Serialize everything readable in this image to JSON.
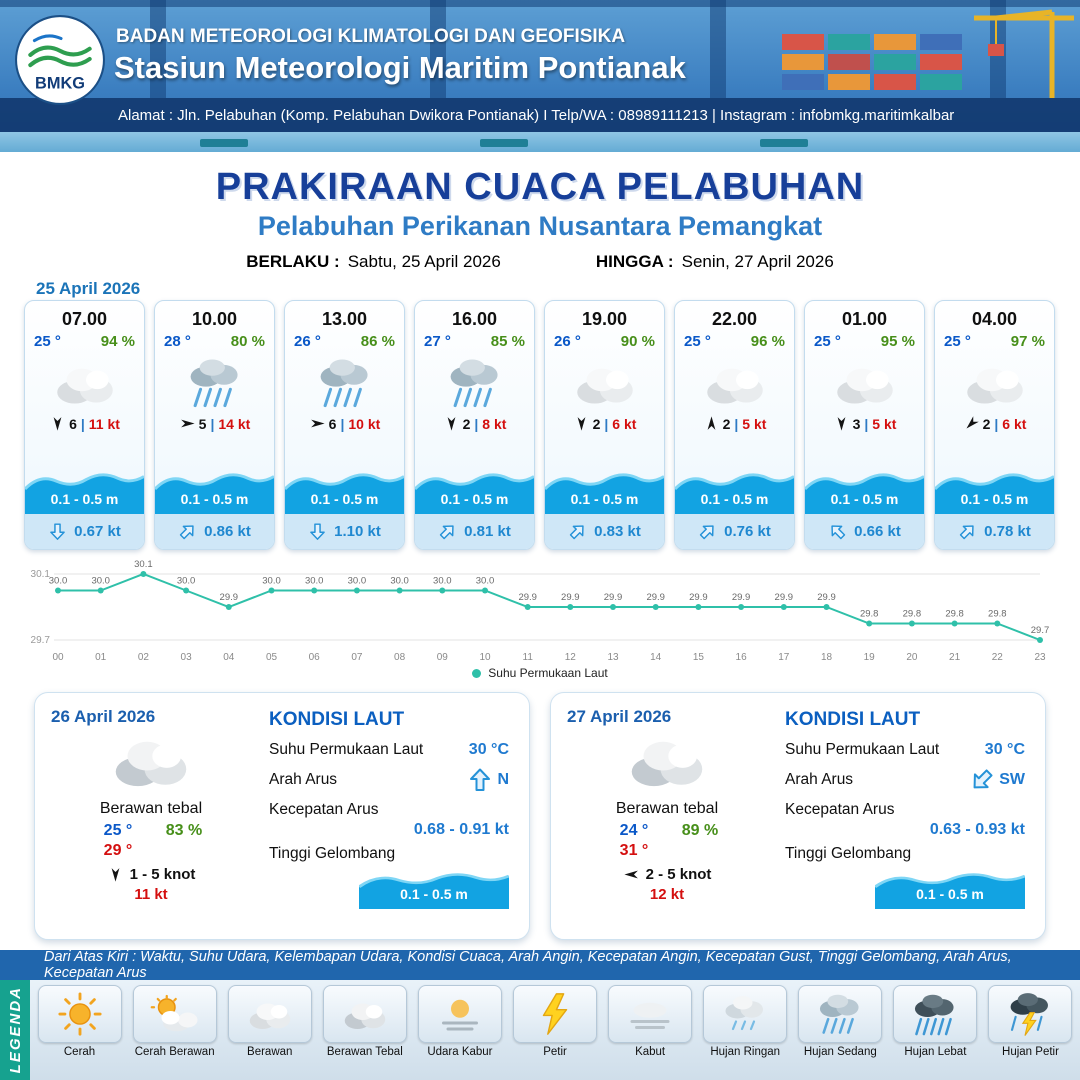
{
  "header": {
    "logo_text": "BMKG",
    "org": "BADAN METEOROLOGI KLIMATOLOGI DAN GEOFISIKA",
    "station": "Stasiun Meteorologi Maritim Pontianak",
    "address": "Alamat : Jln. Pelabuhan (Komp. Pelabuhan Dwikora Pontianak) I Telp/WA : 08989111213 | Instagram : infobmkg.maritimkalbar"
  },
  "title": {
    "main": "PRAKIRAAN CUACA PELABUHAN",
    "sub": "Pelabuhan Perikanan Nusantara Pemangkat",
    "valid_label": "BERLAKU :",
    "valid_value": "Sabtu, 25 April 2026",
    "until_label": "HINGGA :",
    "until_value": "Senin, 27 April 2026"
  },
  "hourly": {
    "date": "25 April 2026",
    "sep": "|",
    "cards": [
      {
        "time": "07.00",
        "temp": "25 °",
        "rh": "94 %",
        "icon": "berawan",
        "wind_deg": 180,
        "wind": "6",
        "gust": "11 kt",
        "wave": "0.1 - 0.5 m",
        "cur_deg": 180,
        "cur": "0.67 kt"
      },
      {
        "time": "10.00",
        "temp": "28 °",
        "rh": "80 %",
        "icon": "hujan-sedang",
        "wind_deg": 90,
        "wind": "5",
        "gust": "14 kt",
        "wave": "0.1 - 0.5 m",
        "cur_deg": 45,
        "cur": "0.86 kt"
      },
      {
        "time": "13.00",
        "temp": "26 °",
        "rh": "86 %",
        "icon": "hujan-sedang",
        "wind_deg": 90,
        "wind": "6",
        "gust": "10 kt",
        "wave": "0.1 - 0.5 m",
        "cur_deg": 180,
        "cur": "1.10 kt"
      },
      {
        "time": "16.00",
        "temp": "27 °",
        "rh": "85 %",
        "icon": "hujan-sedang",
        "wind_deg": 180,
        "wind": "2",
        "gust": "8 kt",
        "wave": "0.1 - 0.5 m",
        "cur_deg": 45,
        "cur": "0.81 kt"
      },
      {
        "time": "19.00",
        "temp": "26 °",
        "rh": "90 %",
        "icon": "berawan",
        "wind_deg": 180,
        "wind": "2",
        "gust": "6 kt",
        "wave": "0.1 - 0.5 m",
        "cur_deg": 45,
        "cur": "0.83 kt"
      },
      {
        "time": "22.00",
        "temp": "25 °",
        "rh": "96 %",
        "icon": "berawan",
        "wind_deg": 0,
        "wind": "2",
        "gust": "5 kt",
        "wave": "0.1 - 0.5 m",
        "cur_deg": 45,
        "cur": "0.76 kt"
      },
      {
        "time": "01.00",
        "temp": "25 °",
        "rh": "95 %",
        "icon": "berawan",
        "wind_deg": 180,
        "wind": "3",
        "gust": "5 kt",
        "wave": "0.1 - 0.5 m",
        "cur_deg": 315,
        "cur": "0.66 kt"
      },
      {
        "time": "04.00",
        "temp": "25 °",
        "rh": "97 %",
        "icon": "berawan",
        "wind_deg": 225,
        "wind": "2",
        "gust": "6 kt",
        "wave": "0.1 - 0.5 m",
        "cur_deg": 45,
        "cur": "0.78 kt"
      }
    ]
  },
  "chart_data": {
    "type": "line",
    "series_label": "Suhu Permukaan Laut",
    "x": [
      "00",
      "01",
      "02",
      "03",
      "04",
      "05",
      "06",
      "07",
      "08",
      "09",
      "10",
      "11",
      "12",
      "13",
      "14",
      "15",
      "16",
      "17",
      "18",
      "19",
      "20",
      "21",
      "22",
      "23"
    ],
    "values": [
      30.0,
      30.0,
      30.1,
      30.0,
      29.9,
      30.0,
      30.0,
      30.0,
      30.0,
      30.0,
      30.0,
      29.9,
      29.9,
      29.9,
      29.9,
      29.9,
      29.9,
      29.9,
      29.9,
      29.8,
      29.8,
      29.8,
      29.8,
      29.7
    ],
    "ylim": [
      29.7,
      30.1
    ],
    "line_color": "#2fc0a9",
    "grid": true,
    "legend_position": "bottom"
  },
  "daily": [
    {
      "date": "26 April 2026",
      "icon": "berawan-tebal",
      "condition": "Berawan tebal",
      "tmin": "25 °",
      "rh": "83 %",
      "tmax": "29 °",
      "wind_deg": 180,
      "wind": "1 - 5 knot",
      "gust": "11 kt",
      "sea": {
        "heading": "KONDISI LAUT",
        "sst_label": "Suhu Permukaan Laut",
        "sst": "30 °C",
        "dir_label": "Arah Arus",
        "dir_deg": 0,
        "dir": "N",
        "speed_label": "Kecepatan Arus",
        "speed": "0.68 - 0.91 kt",
        "wave_label": "Tinggi Gelombang",
        "wave": "0.1 - 0.5 m"
      }
    },
    {
      "date": "27 April 2026",
      "icon": "berawan-tebal",
      "condition": "Berawan tebal",
      "tmin": "24 °",
      "rh": "89 %",
      "tmax": "31 °",
      "wind_deg": 270,
      "wind": "2 - 5 knot",
      "gust": "12 kt",
      "sea": {
        "heading": "KONDISI LAUT",
        "sst_label": "Suhu Permukaan Laut",
        "sst": "30 °C",
        "dir_label": "Arah Arus",
        "dir_deg": 225,
        "dir": "SW",
        "speed_label": "Kecepatan Arus",
        "speed": "0.63 - 0.93 kt",
        "wave_label": "Tinggi Gelombang",
        "wave": "0.1 - 0.5 m"
      }
    }
  ],
  "legend": {
    "caption": "Dari Atas Kiri : Waktu, Suhu Udara, Kelembapan Udara, Kondisi Cuaca, Arah Angin, Kecepatan Angin, Kecepatan Gust, Tinggi Gelombang, Arah Arus, Kecepatan Arus",
    "side_label": "LEGENDA",
    "items": [
      {
        "label": "Cerah",
        "icon": "cerah"
      },
      {
        "label": "Cerah Berawan",
        "icon": "cerah-berawan"
      },
      {
        "label": "Berawan",
        "icon": "berawan"
      },
      {
        "label": "Berawan Tebal",
        "icon": "berawan-tebal"
      },
      {
        "label": "Udara Kabur",
        "icon": "udara-kabur"
      },
      {
        "label": "Petir",
        "icon": "petir"
      },
      {
        "label": "Kabut",
        "icon": "kabut"
      },
      {
        "label": "Hujan Ringan",
        "icon": "hujan-ringan"
      },
      {
        "label": "Hujan Sedang",
        "icon": "hujan-sedang"
      },
      {
        "label": "Hujan Lebat",
        "icon": "hujan-lebat"
      },
      {
        "label": "Hujan Petir",
        "icon": "hujan-petir"
      }
    ]
  }
}
